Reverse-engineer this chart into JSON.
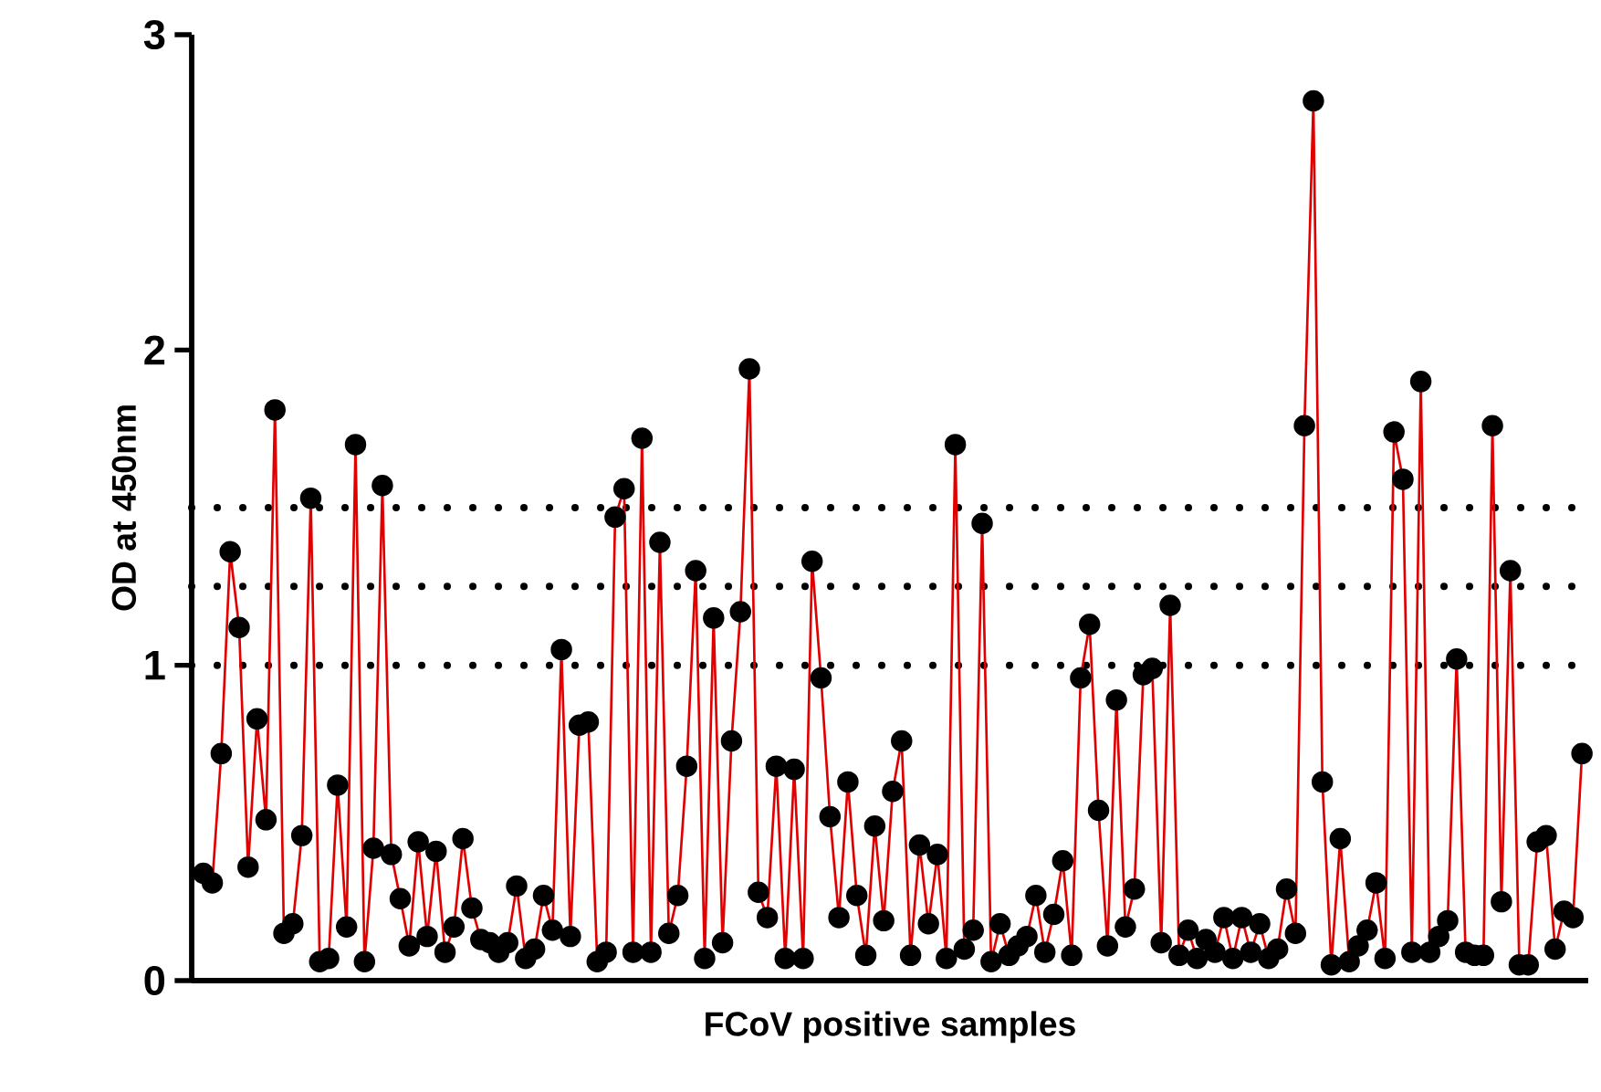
{
  "chart_data": {
    "type": "line",
    "xlabel": "FCoV positive samples",
    "ylabel": "OD at 450nm",
    "categories": [
      null,
      null,
      null,
      null,
      null,
      null,
      null,
      null,
      null,
      null,
      null,
      null,
      null,
      null,
      null,
      null,
      null,
      null,
      null,
      null,
      null,
      null,
      null,
      null,
      null,
      null,
      null,
      null,
      null,
      null,
      null,
      null,
      null,
      null,
      null,
      null,
      null,
      null,
      null,
      null,
      null,
      null,
      null,
      null,
      null,
      null,
      null,
      null,
      null,
      null,
      null,
      null,
      null,
      null,
      null,
      null,
      null,
      null,
      null,
      null,
      null,
      null,
      null,
      null,
      null,
      null,
      null,
      null,
      null,
      null,
      null,
      null,
      null,
      null,
      null,
      null,
      null,
      null,
      null,
      null,
      null,
      null,
      null,
      null,
      null,
      null,
      null,
      null,
      null,
      null,
      null,
      null,
      null,
      null,
      null,
      null,
      null,
      null,
      null,
      null,
      null,
      null,
      null,
      null,
      null,
      null,
      null,
      null,
      null,
      null,
      null,
      null,
      null,
      null,
      null,
      null,
      null,
      null,
      null,
      null,
      null,
      null,
      null,
      null,
      null,
      null,
      null,
      null,
      null,
      null,
      null,
      null,
      null,
      null,
      null,
      null,
      null,
      null,
      null,
      null,
      null,
      null,
      null,
      null,
      null,
      null,
      null,
      null,
      null,
      null,
      null,
      null,
      null,
      null,
      null
    ],
    "series": [
      {
        "color": "#e00000",
        "values": [
          0.34,
          0.31,
          0.72,
          1.36,
          1.12,
          0.36,
          0.83,
          0.51,
          1.81,
          0.15,
          0.18,
          0.46,
          1.53,
          0.06,
          0.07,
          0.62,
          0.17,
          1.7,
          0.06,
          0.42,
          1.57,
          0.4,
          0.26,
          0.11,
          0.44,
          0.14,
          0.41,
          0.09,
          0.17,
          0.45,
          0.23,
          0.13,
          0.12,
          0.09,
          0.12,
          0.3,
          0.07,
          0.1,
          0.27,
          0.16,
          1.05,
          0.14,
          0.81,
          0.82,
          0.06,
          0.09,
          1.47,
          1.56,
          0.09,
          1.72,
          0.09,
          1.39,
          0.15,
          0.27,
          0.68,
          1.3,
          0.07,
          1.15,
          0.12,
          0.76,
          1.17,
          1.94,
          0.28,
          0.2,
          0.68,
          0.07,
          0.67,
          0.07,
          1.33,
          0.96,
          0.52,
          0.2,
          0.63,
          0.27,
          0.08,
          0.49,
          0.19,
          0.6,
          0.76,
          0.08,
          0.43,
          0.18,
          0.4,
          0.07,
          1.7,
          0.1,
          0.16,
          1.45,
          0.06,
          0.18,
          0.08,
          0.11,
          0.14,
          0.27,
          0.09,
          0.21,
          0.38,
          0.08,
          0.96,
          1.13,
          0.54,
          0.11,
          0.89,
          0.17,
          0.29,
          0.97,
          0.99,
          0.12,
          1.19,
          0.08,
          0.16,
          0.07,
          0.13,
          0.09,
          0.2,
          0.07,
          0.2,
          0.09,
          0.18,
          0.07,
          0.1,
          0.29,
          0.15,
          1.76,
          2.79,
          0.63,
          0.05,
          0.45,
          0.06,
          0.11,
          0.16,
          0.31,
          0.07,
          1.74,
          1.59,
          0.09,
          1.9,
          0.09,
          0.14,
          0.19,
          1.02,
          0.09,
          0.08,
          0.08,
          1.76,
          0.25,
          1.3,
          0.05,
          0.05,
          0.44,
          0.46,
          0.1,
          0.22,
          0.2,
          0.72
        ]
      }
    ],
    "ylim": [
      0,
      3
    ],
    "yticks": [
      0,
      1,
      2,
      3
    ],
    "tick_labels": "y",
    "marker": "circle",
    "line_style": "solid",
    "grid": false,
    "ref_lines": [
      {
        "axis": "y",
        "value": 1,
        "color": "#000000",
        "line_style": "dotted"
      },
      {
        "axis": "y",
        "value": 1.25,
        "color": "#000000",
        "line_style": "dotted"
      },
      {
        "axis": "y",
        "value": 1.5,
        "color": "#000000",
        "line_style": "dotted"
      }
    ]
  }
}
